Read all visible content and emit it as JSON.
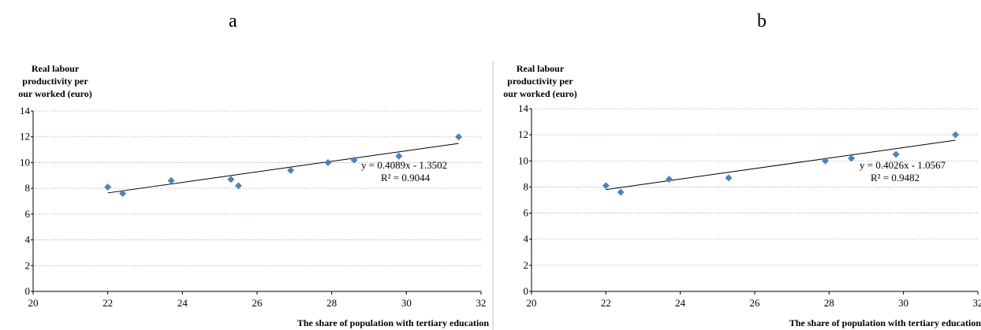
{
  "panels": [
    {
      "label": "a"
    },
    {
      "label": "b"
    }
  ],
  "chart_data": [
    {
      "type": "scatter",
      "panel": "a",
      "title": "",
      "ylabel_lines": [
        "Real labour",
        "productivity per",
        "our worked (euro)"
      ],
      "xlabel": "The share of population with tertiary education",
      "xlim": [
        20,
        32
      ],
      "ylim": [
        0,
        14
      ],
      "xticks": [
        20,
        22,
        24,
        26,
        28,
        30,
        32
      ],
      "yticks": [
        0,
        2,
        4,
        6,
        8,
        10,
        12,
        14
      ],
      "grid": "horizontal dotted",
      "marker_color": "#4F81BD",
      "points": [
        {
          "x": 22.0,
          "y": 8.1
        },
        {
          "x": 22.4,
          "y": 7.6
        },
        {
          "x": 23.7,
          "y": 8.6
        },
        {
          "x": 25.3,
          "y": 8.7
        },
        {
          "x": 25.5,
          "y": 8.2
        },
        {
          "x": 26.9,
          "y": 9.4
        },
        {
          "x": 27.9,
          "y": 10.0
        },
        {
          "x": 28.6,
          "y": 10.2
        },
        {
          "x": 29.8,
          "y": 10.5
        },
        {
          "x": 31.4,
          "y": 12.0
        }
      ],
      "trendline": {
        "slope": 0.4089,
        "intercept": -1.3502,
        "x_range": [
          22.0,
          31.4
        ]
      },
      "equation_text": "y = 0.4089x - 1.3502",
      "r2_text": "R² = 0.9044"
    },
    {
      "type": "scatter",
      "panel": "b",
      "title": "",
      "ylabel_lines": [
        "Real labour",
        "productivity per",
        "our worked (euro)"
      ],
      "xlabel": "The share of population with tertiary education",
      "xlim": [
        20,
        32
      ],
      "ylim": [
        0,
        14
      ],
      "xticks": [
        20,
        22,
        24,
        26,
        28,
        30,
        32
      ],
      "yticks": [
        0,
        2,
        4,
        6,
        8,
        10,
        12,
        14
      ],
      "grid": "horizontal dotted",
      "marker_color": "#4F81BD",
      "points": [
        {
          "x": 22.0,
          "y": 8.1
        },
        {
          "x": 22.4,
          "y": 7.6
        },
        {
          "x": 23.7,
          "y": 8.6
        },
        {
          "x": 25.3,
          "y": 8.7
        },
        {
          "x": 27.9,
          "y": 10.0
        },
        {
          "x": 28.6,
          "y": 10.2
        },
        {
          "x": 29.8,
          "y": 10.5
        },
        {
          "x": 31.4,
          "y": 12.0
        }
      ],
      "trendline": {
        "slope": 0.4026,
        "intercept": -1.0567,
        "x_range": [
          22.0,
          31.4
        ]
      },
      "equation_text": "y = 0.4026x - 1.0567",
      "r2_text": "R² = 0.9482"
    }
  ]
}
